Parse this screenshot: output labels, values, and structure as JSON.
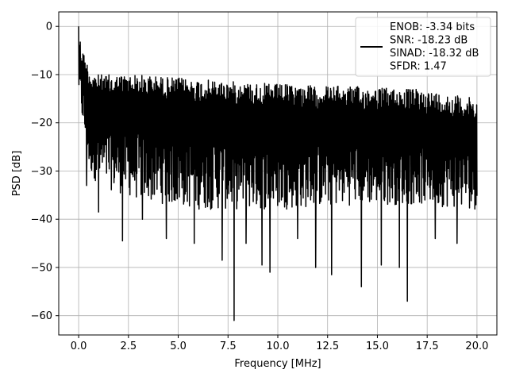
{
  "chart_data": {
    "type": "line",
    "title": "",
    "xlabel": "Frequency [MHz]",
    "ylabel": "PSD [dB]",
    "xlim": [
      -1.0,
      21.0
    ],
    "ylim": [
      -64.0,
      3.0
    ],
    "x_ticks": [
      0.0,
      2.5,
      5.0,
      7.5,
      10.0,
      12.5,
      15.0,
      17.5,
      20.0
    ],
    "x_tick_labels": [
      "0.0",
      "2.5",
      "5.0",
      "7.5",
      "10.0",
      "12.5",
      "15.0",
      "17.5",
      "20.0"
    ],
    "y_ticks": [
      0,
      -10,
      -20,
      -30,
      -40,
      -50,
      -60
    ],
    "y_tick_labels": [
      "0",
      "−10",
      "−20",
      "−30",
      "−40",
      "−50",
      "−60"
    ],
    "grid": true,
    "legend": {
      "placement": "top-right",
      "entries": [
        "ENOB: -3.34 bits",
        "SNR: -18.23 dB",
        "SINAD: -18.32 dB",
        "SFDR: 1.47"
      ]
    },
    "series": [
      {
        "color": "#000000",
        "envelope_upper": [
          [
            0.0,
            0
          ],
          [
            0.1,
            -3
          ],
          [
            0.3,
            -6
          ],
          [
            0.6,
            -9
          ],
          [
            1.0,
            -10
          ],
          [
            3.0,
            -10
          ],
          [
            6.0,
            -11
          ],
          [
            10.0,
            -12
          ],
          [
            14.0,
            -12.5
          ],
          [
            17.0,
            -13
          ],
          [
            20.0,
            -15
          ]
        ],
        "envelope_lower": [
          [
            0.0,
            -14
          ],
          [
            0.5,
            -30
          ],
          [
            1.0,
            -33
          ],
          [
            3.0,
            -36
          ],
          [
            6.0,
            -38
          ],
          [
            10.0,
            -38
          ],
          [
            14.0,
            -37
          ],
          [
            17.0,
            -37
          ],
          [
            20.0,
            -38
          ]
        ],
        "dips": [
          [
            0.4,
            -33
          ],
          [
            1.0,
            -38.5
          ],
          [
            2.2,
            -44.5
          ],
          [
            3.2,
            -40
          ],
          [
            4.4,
            -44
          ],
          [
            5.8,
            -45
          ],
          [
            7.2,
            -48.5
          ],
          [
            7.8,
            -61
          ],
          [
            8.4,
            -45
          ],
          [
            9.2,
            -49.5
          ],
          [
            9.6,
            -51
          ],
          [
            11.0,
            -44
          ],
          [
            11.9,
            -50
          ],
          [
            12.7,
            -51.5
          ],
          [
            14.2,
            -54
          ],
          [
            15.2,
            -49.5
          ],
          [
            16.1,
            -50
          ],
          [
            16.5,
            -57
          ],
          [
            17.9,
            -44
          ],
          [
            19.0,
            -45
          ]
        ],
        "points": 1500
      }
    ]
  }
}
